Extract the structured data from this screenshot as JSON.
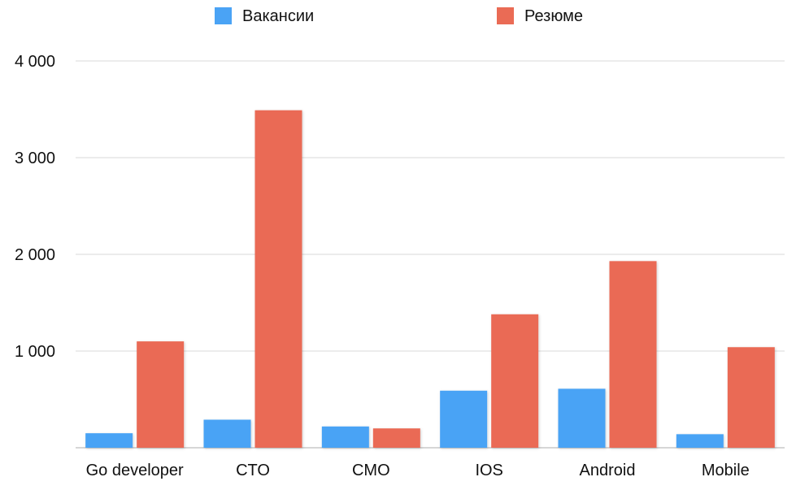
{
  "chart_data": {
    "type": "bar",
    "categories": [
      "Go developer",
      "CTO",
      "CMO",
      "IOS",
      "Android",
      "Mobile"
    ],
    "series": [
      {
        "name": "Вакансии",
        "values": [
          150,
          290,
          220,
          590,
          610,
          140
        ],
        "color": "#4aa3f5"
      },
      {
        "name": "Резюме",
        "values": [
          1100,
          3490,
          200,
          1380,
          1930,
          1040
        ],
        "color": "#ea6b55"
      }
    ],
    "yticks": [
      {
        "value": 1000,
        "label": "1 000"
      },
      {
        "value": 2000,
        "label": "2 000"
      },
      {
        "value": 3000,
        "label": "3 000"
      },
      {
        "value": 4000,
        "label": "4 000"
      }
    ],
    "ylim": [
      0,
      4000
    ],
    "grid": true,
    "legend": "top-center",
    "title": "",
    "xlabel": "",
    "ylabel": ""
  }
}
